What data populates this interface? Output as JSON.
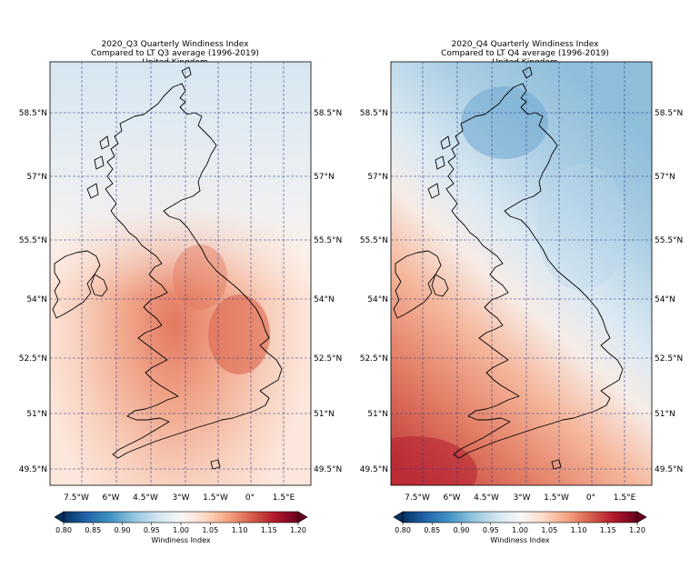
{
  "panels": [
    {
      "title": "2020_Q3 Quarterly Windiness Index",
      "subtitle": "Compared to LT Q3 average (1996-2019)",
      "region": "United Kingdom"
    },
    {
      "title": "2020_Q4 Quarterly Windiness Index",
      "subtitle": "Compared to LT Q4 average (1996-2019)",
      "region": "United Kingdom"
    }
  ],
  "latitudes": [
    "58.5°N",
    "57°N",
    "55.5°N",
    "54°N",
    "52.5°N",
    "51°N",
    "49.5°N"
  ],
  "longitudes": [
    "7.5°W",
    "6°W",
    "4.5°W",
    "3°W",
    "1.5°W",
    "0°",
    "1.5°E"
  ],
  "colorbar": {
    "label": "Windiness Index",
    "ticks": [
      "0.80",
      "0.85",
      "0.90",
      "0.95",
      "1.00",
      "1.05",
      "1.10",
      "1.15",
      "1.20"
    ],
    "min": 0.8,
    "max": 1.2,
    "colors": [
      "#053061",
      "#2166ac",
      "#4393c3",
      "#92c5de",
      "#d1e5f0",
      "#f7f7f7",
      "#fddbc7",
      "#f4a582",
      "#d6604d",
      "#b2182b",
      "#67001f"
    ]
  }
}
